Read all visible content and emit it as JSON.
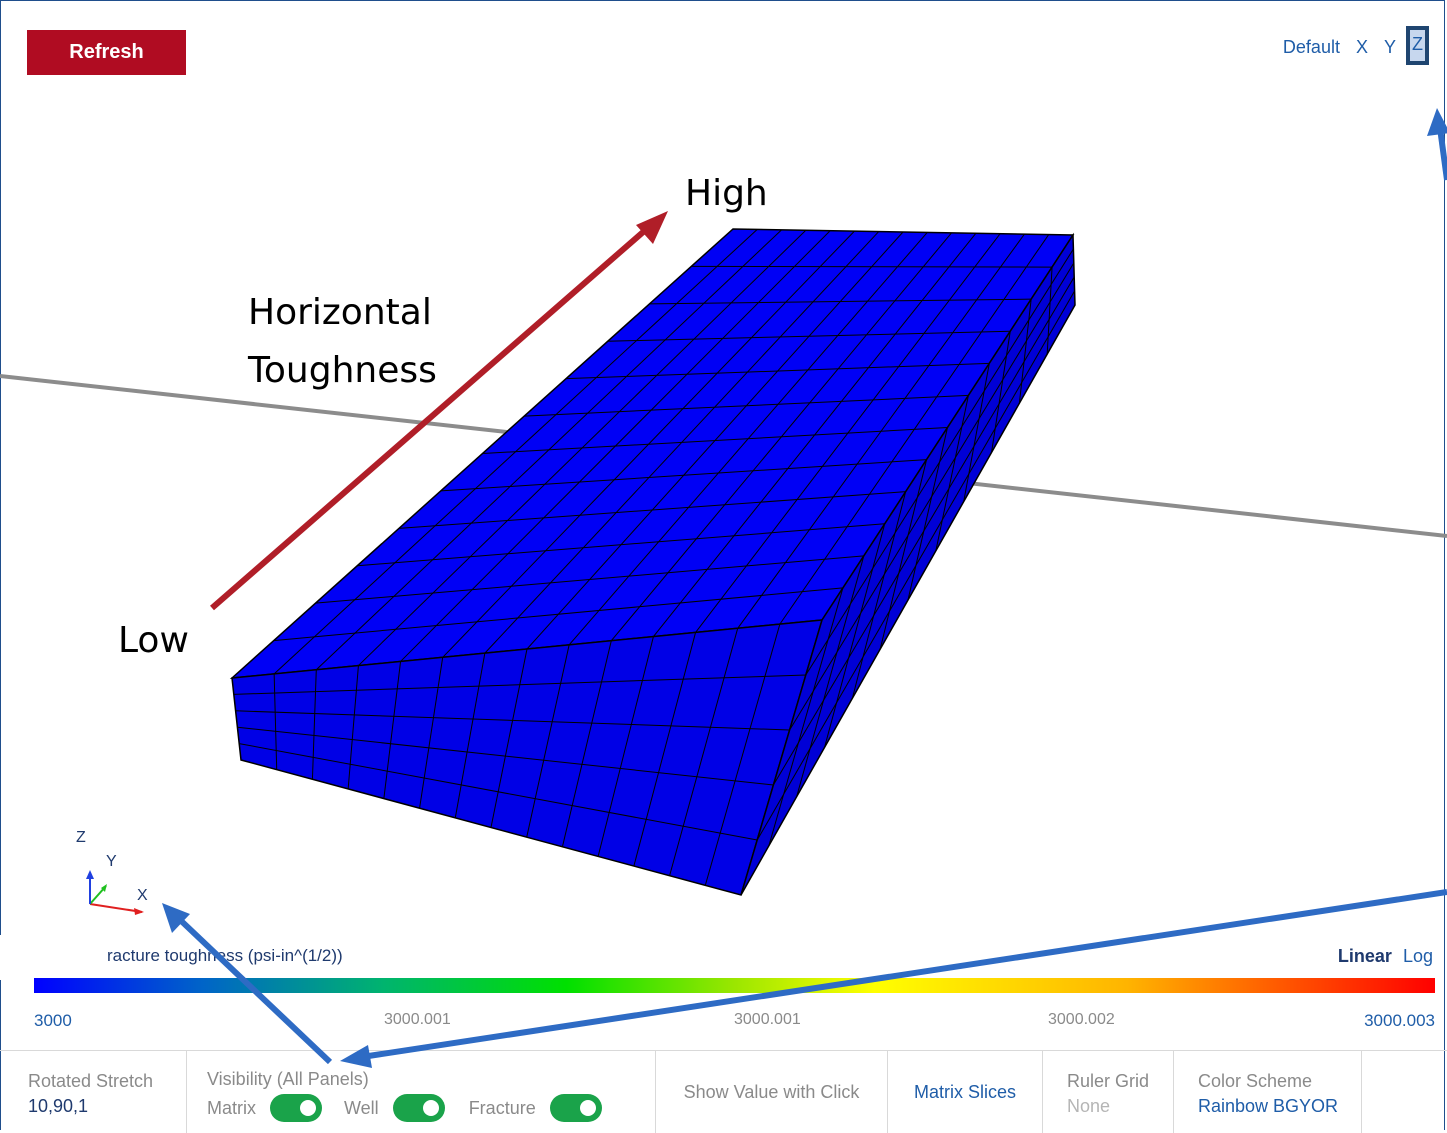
{
  "toolbar": {
    "refresh_label": "Refresh"
  },
  "view_buttons": {
    "default": "Default",
    "x": "X",
    "y": "Y",
    "z": "Z",
    "active": "Z"
  },
  "annotations": {
    "high": "High",
    "horizontal": "Horizontal",
    "toughness": "Toughness",
    "low": "Low"
  },
  "axis_triad": {
    "z": "Z",
    "y": "Y",
    "x": "X"
  },
  "colorbar": {
    "title": "racture toughness (psi-in^(1/2))",
    "scale_options": {
      "linear": "Linear",
      "log": "Log",
      "active": "Linear"
    },
    "ticks": [
      "3000",
      "3000.001",
      "3000.001",
      "3000.002",
      "3000.003"
    ],
    "min_color": "#0000ff",
    "max_color": "#ff0000"
  },
  "bottom_bar": {
    "rotated_stretch": {
      "label": "Rotated Stretch",
      "value": "10,90,1"
    },
    "visibility": {
      "label": "Visibility (All Panels)",
      "toggles": [
        {
          "label": "Matrix",
          "on": true
        },
        {
          "label": "Well",
          "on": true
        },
        {
          "label": "Fracture",
          "on": true
        }
      ]
    },
    "show_value": {
      "label": "Show Value with Click"
    },
    "matrix_slices": {
      "label": "Matrix Slices"
    },
    "ruler_grid": {
      "label": "Ruler Grid",
      "value": "None"
    },
    "color_scheme": {
      "label": "Color Scheme",
      "value": "Rainbow BGYOR"
    }
  },
  "colors": {
    "model_fill": "#0000ff",
    "accent_red": "#b00c22",
    "toggle_on": "#1aa34a",
    "link_blue": "#1f5da8"
  }
}
